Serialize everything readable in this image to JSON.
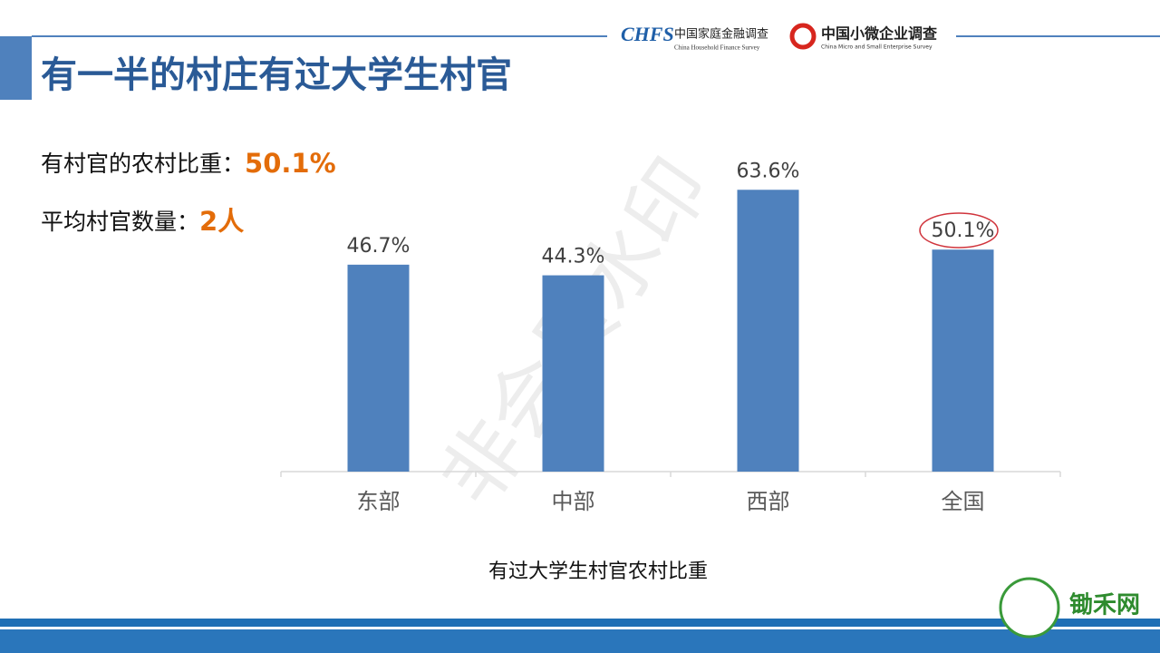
{
  "header": {
    "title": "有一半的村庄有过大学生村官",
    "logo1_mark": "CHFS",
    "logo1_name": "中国家庭金融调查",
    "logo1_sub": "China Household Finance Survey",
    "logo2_name": "中国小微企业调查",
    "logo2_sub": "China Micro and Small Enterprise Survey"
  },
  "stats": [
    {
      "label": "有村官的农村比重：",
      "value": "50.1%"
    },
    {
      "label": "平均村官数量：",
      "value": "2人"
    }
  ],
  "watermark": "非会员水印",
  "footer": {
    "brand": "锄禾网"
  },
  "chart_data": {
    "type": "bar",
    "x_label": "有过大学生村官农村比重",
    "categories": [
      "东部",
      "中部",
      "西部",
      "全国"
    ],
    "values": [
      46.7,
      44.3,
      63.6,
      50.1
    ],
    "value_labels": [
      "46.7%",
      "44.3%",
      "63.6%",
      "50.1%"
    ],
    "color": "#4f81bd",
    "ylim": [
      0,
      70
    ]
  }
}
